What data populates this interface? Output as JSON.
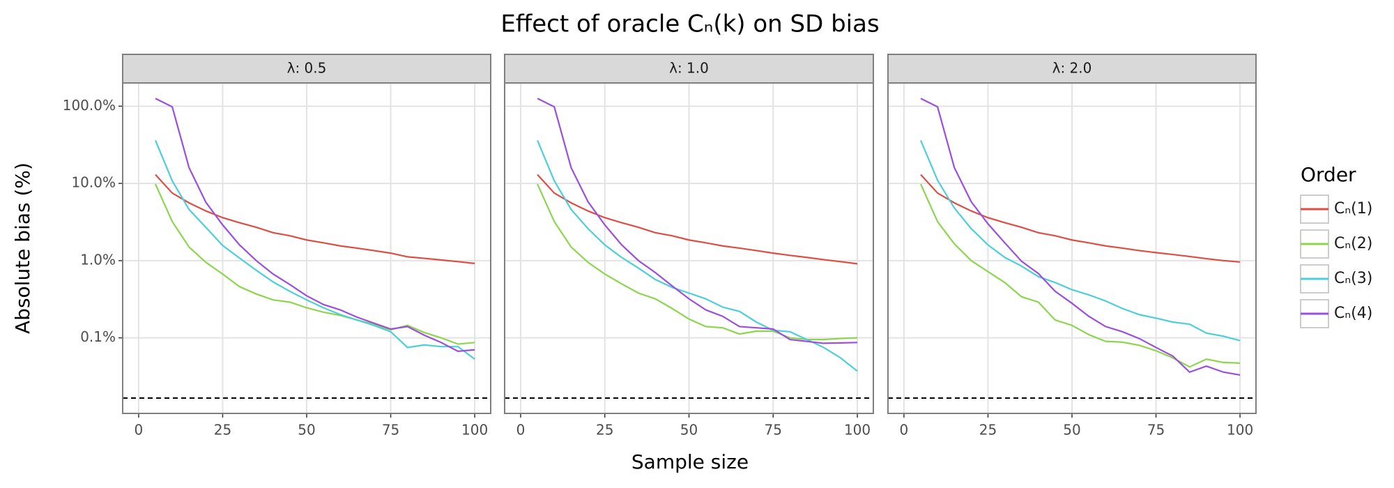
{
  "title": "Effect of oracle Cₙ(k) on SD bias",
  "x_label": "Sample size",
  "y_label": "Absolute bias (%)",
  "ylim": [
    0.0105,
    200
  ],
  "log_y": true,
  "yticks": [
    {
      "value": 0.1,
      "label": "0.1%"
    },
    {
      "value": 1,
      "label": "1.0%"
    },
    {
      "value": 10,
      "label": "10.0%"
    },
    {
      "value": 100,
      "label": "100.0%"
    }
  ],
  "reference_line": 0.0166,
  "grid": true,
  "legend": {
    "title": "Order",
    "position": "right",
    "names": [
      "Cₙ(1)",
      "Cₙ(2)",
      "Cₙ(3)",
      "Cₙ(4)"
    ],
    "colors": [
      "#dc4e44",
      "#8cd64e",
      "#4ccfd9",
      "#9b4fdb"
    ]
  },
  "chart_data": [
    {
      "type": "line",
      "facet": "λ: 0.5",
      "x": [
        5,
        10,
        15,
        20,
        25,
        30,
        35,
        40,
        45,
        50,
        55,
        60,
        65,
        70,
        75,
        80,
        85,
        90,
        95,
        100
      ],
      "xlim": [
        -4.75,
        104.75
      ],
      "xticks": [
        0,
        25,
        50,
        75,
        100
      ],
      "series": [
        {
          "values": [
            13.0,
            7.5,
            5.6,
            4.4,
            3.6,
            3.1,
            2.7,
            2.3,
            2.1,
            1.85,
            1.7,
            1.55,
            1.45,
            1.35,
            1.25,
            1.12,
            1.07,
            1.02,
            0.97,
            0.92
          ]
        },
        {
          "values": [
            9.8,
            3.2,
            1.5,
            0.95,
            0.67,
            0.46,
            0.37,
            0.31,
            0.29,
            0.245,
            0.215,
            0.195,
            0.17,
            0.15,
            0.127,
            0.145,
            0.117,
            0.1,
            0.083,
            0.087
          ]
        },
        {
          "values": [
            36,
            10.8,
            4.6,
            2.7,
            1.57,
            1.08,
            0.75,
            0.53,
            0.4,
            0.31,
            0.245,
            0.2,
            0.17,
            0.145,
            0.12,
            0.075,
            0.081,
            0.077,
            0.077,
            0.053
          ]
        },
        {
          "values": [
            126,
            98,
            16,
            5.7,
            2.9,
            1.6,
            1.0,
            0.67,
            0.49,
            0.35,
            0.27,
            0.23,
            0.185,
            0.155,
            0.13,
            0.14,
            0.108,
            0.087,
            0.067,
            0.07
          ]
        }
      ]
    },
    {
      "type": "line",
      "facet": "λ: 1.0",
      "x": [
        5,
        10,
        15,
        20,
        25,
        30,
        35,
        40,
        45,
        50,
        55,
        60,
        65,
        70,
        75,
        80,
        85,
        90,
        95,
        100
      ],
      "xlim": [
        -4.75,
        104.75
      ],
      "xticks": [
        0,
        25,
        50,
        75,
        100
      ],
      "series": [
        {
          "values": [
            13.0,
            7.5,
            5.6,
            4.4,
            3.6,
            3.1,
            2.7,
            2.3,
            2.1,
            1.85,
            1.7,
            1.55,
            1.45,
            1.35,
            1.25,
            1.17,
            1.1,
            1.03,
            0.97,
            0.91
          ]
        },
        {
          "values": [
            9.8,
            3.2,
            1.5,
            0.95,
            0.67,
            0.5,
            0.38,
            0.32,
            0.24,
            0.175,
            0.14,
            0.135,
            0.112,
            0.122,
            0.122,
            0.1,
            0.095,
            0.095,
            0.098,
            0.1
          ]
        },
        {
          "values": [
            36,
            10.8,
            4.6,
            2.6,
            1.6,
            1.1,
            0.8,
            0.57,
            0.45,
            0.38,
            0.32,
            0.25,
            0.22,
            0.16,
            0.125,
            0.12,
            0.095,
            0.075,
            0.055,
            0.037
          ]
        },
        {
          "values": [
            126,
            98,
            16,
            5.8,
            2.9,
            1.6,
            1.0,
            0.7,
            0.47,
            0.32,
            0.23,
            0.19,
            0.14,
            0.135,
            0.13,
            0.095,
            0.09,
            0.085,
            0.086,
            0.087
          ]
        }
      ]
    },
    {
      "type": "line",
      "facet": "λ: 2.0",
      "x": [
        5,
        10,
        15,
        20,
        25,
        30,
        35,
        40,
        45,
        50,
        55,
        60,
        65,
        70,
        75,
        80,
        85,
        90,
        95,
        100
      ],
      "xlim": [
        -4.75,
        104.75
      ],
      "xticks": [
        0,
        25,
        50,
        75,
        100
      ],
      "series": [
        {
          "values": [
            13.0,
            7.5,
            5.6,
            4.4,
            3.6,
            3.1,
            2.7,
            2.3,
            2.1,
            1.85,
            1.7,
            1.55,
            1.45,
            1.35,
            1.27,
            1.2,
            1.13,
            1.06,
            1.0,
            0.96
          ]
        },
        {
          "values": [
            9.8,
            3.2,
            1.65,
            1.0,
            0.72,
            0.52,
            0.34,
            0.29,
            0.17,
            0.145,
            0.11,
            0.09,
            0.088,
            0.08,
            0.068,
            0.055,
            0.042,
            0.053,
            0.048,
            0.047
          ]
        },
        {
          "values": [
            36,
            11,
            4.8,
            2.6,
            1.6,
            1.1,
            0.85,
            0.62,
            0.52,
            0.42,
            0.36,
            0.3,
            0.24,
            0.2,
            0.18,
            0.16,
            0.15,
            0.115,
            0.105,
            0.092
          ]
        },
        {
          "values": [
            126,
            98,
            16,
            5.8,
            3.0,
            1.7,
            0.98,
            0.68,
            0.4,
            0.28,
            0.19,
            0.14,
            0.12,
            0.098,
            0.075,
            0.058,
            0.036,
            0.043,
            0.036,
            0.033
          ]
        }
      ]
    }
  ]
}
